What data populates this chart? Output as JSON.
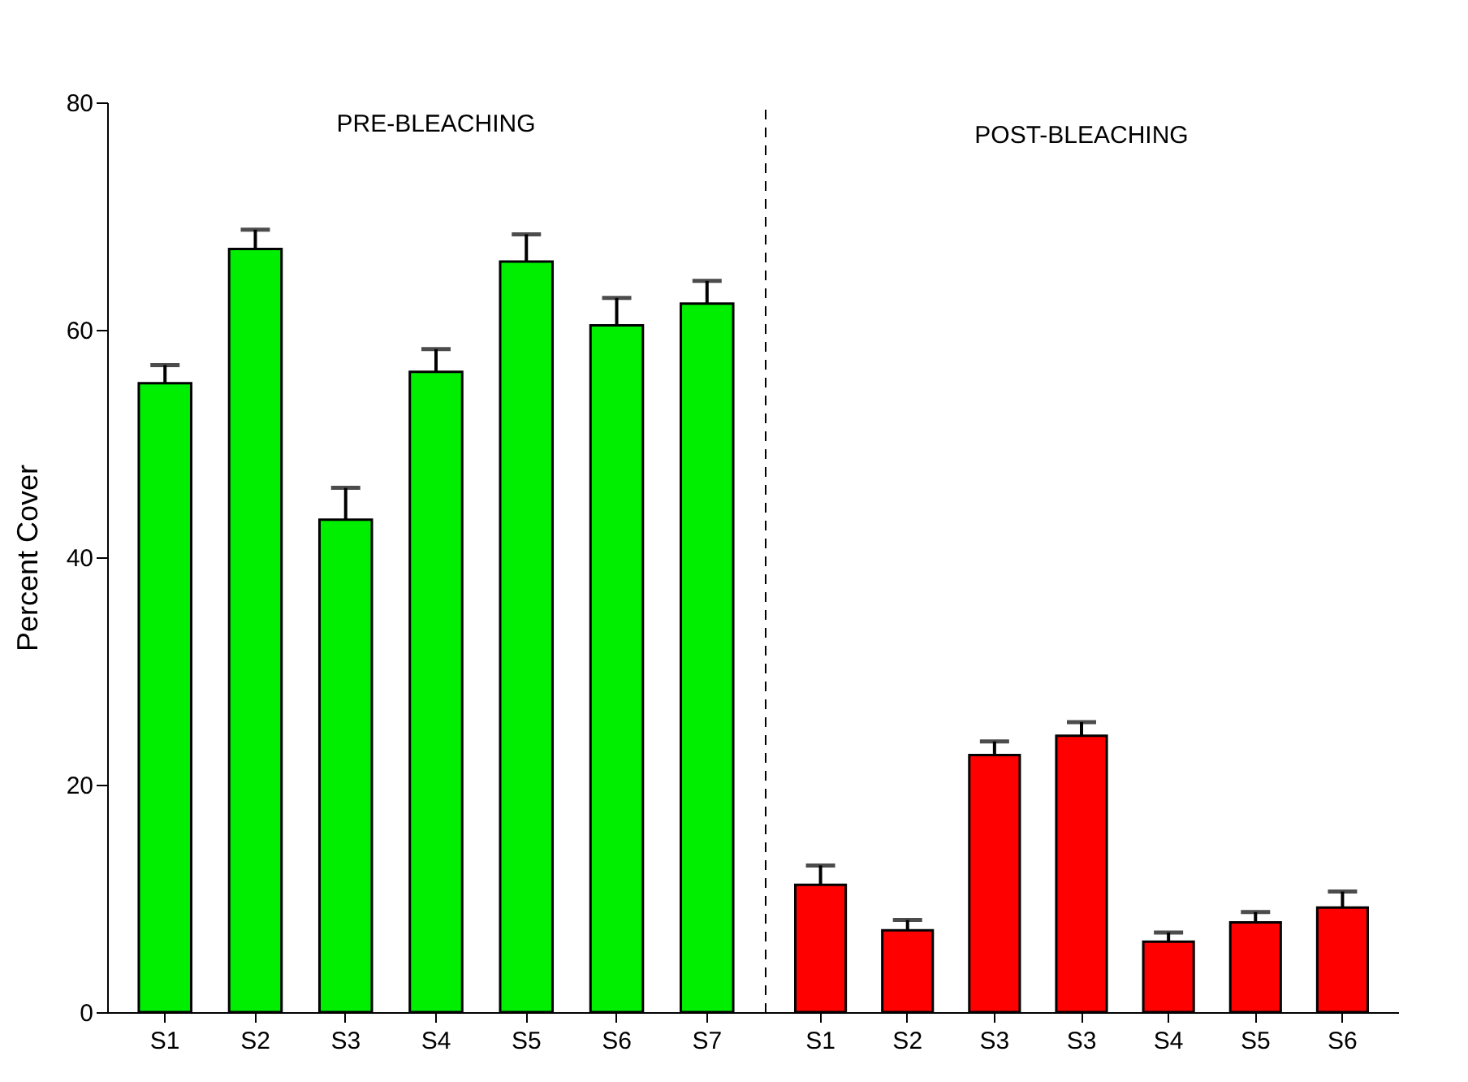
{
  "chart_data": [
    {
      "type": "bar",
      "title": "PRE-BLEACHING",
      "ylabel": "Percent Cover",
      "categories": [
        "S1",
        "S2",
        "S3",
        "S4",
        "S5",
        "S6",
        "S7"
      ],
      "values": [
        55.3,
        67.1,
        43.3,
        56.3,
        66.0,
        60.4,
        62.3
      ],
      "errors": [
        [
          55.3,
          56.9
        ],
        [
          67.1,
          68.8
        ],
        [
          43.3,
          46.1
        ],
        [
          56.3,
          58.3
        ],
        [
          66.0,
          68.4
        ],
        [
          60.4,
          62.8
        ],
        [
          62.3,
          64.3
        ]
      ],
      "color": "#00ee00",
      "ylim": [
        0,
        80
      ],
      "yticks": [
        0,
        20,
        40,
        60,
        80
      ]
    },
    {
      "type": "bar",
      "title": "POST-BLEACHING",
      "categories": [
        "S1",
        "S2",
        "S3",
        "S3",
        "S4",
        "S5",
        "S6"
      ],
      "values": [
        11.2,
        7.2,
        22.6,
        24.3,
        6.2,
        7.9,
        9.2
      ],
      "errors": [
        [
          11.2,
          12.9
        ],
        [
          7.2,
          8.1
        ],
        [
          22.6,
          23.8
        ],
        [
          24.3,
          25.5
        ],
        [
          6.2,
          7.0
        ],
        [
          7.9,
          8.8
        ],
        [
          9.2,
          10.6
        ]
      ],
      "color": "#ff0000",
      "ylim": [
        0,
        80
      ],
      "yticks": [
        0,
        20,
        40,
        60,
        80
      ],
      "tick_labels": "x"
    }
  ]
}
